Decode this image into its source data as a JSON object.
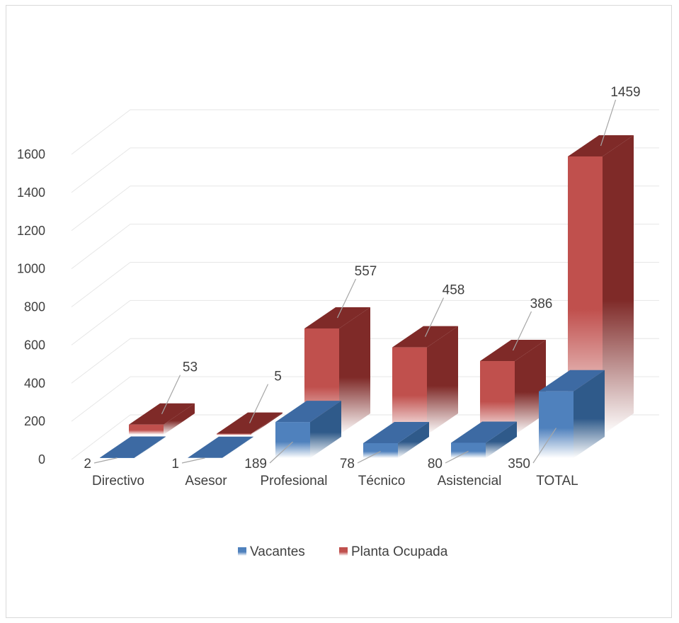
{
  "colors": {
    "vacantes": "#4f81bd",
    "vacantes_dark": "#2f5a8a",
    "planta": "#c0504d",
    "planta_dark": "#7f2a28",
    "grid": "#e6e6e6",
    "text": "#404040"
  },
  "chart_data": {
    "type": "bar",
    "style": "3d-column",
    "title": "",
    "xlabel": "",
    "ylabel": "",
    "categories": [
      "Directivo",
      "Asesor",
      "Profesional",
      "Técnico",
      "Asistencial",
      "TOTAL"
    ],
    "series": [
      {
        "name": "Vacantes",
        "values": [
          2,
          1,
          189,
          78,
          80,
          350
        ]
      },
      {
        "name": "Planta Ocupada",
        "values": [
          53,
          5,
          557,
          458,
          386,
          1459
        ]
      }
    ],
    "ylim": [
      0,
      1600
    ],
    "yticks": [
      "0",
      "200",
      "400",
      "600",
      "800",
      "1000",
      "1200",
      "1400",
      "1600"
    ],
    "legend_position": "bottom",
    "grid": true,
    "data_labels": true
  }
}
